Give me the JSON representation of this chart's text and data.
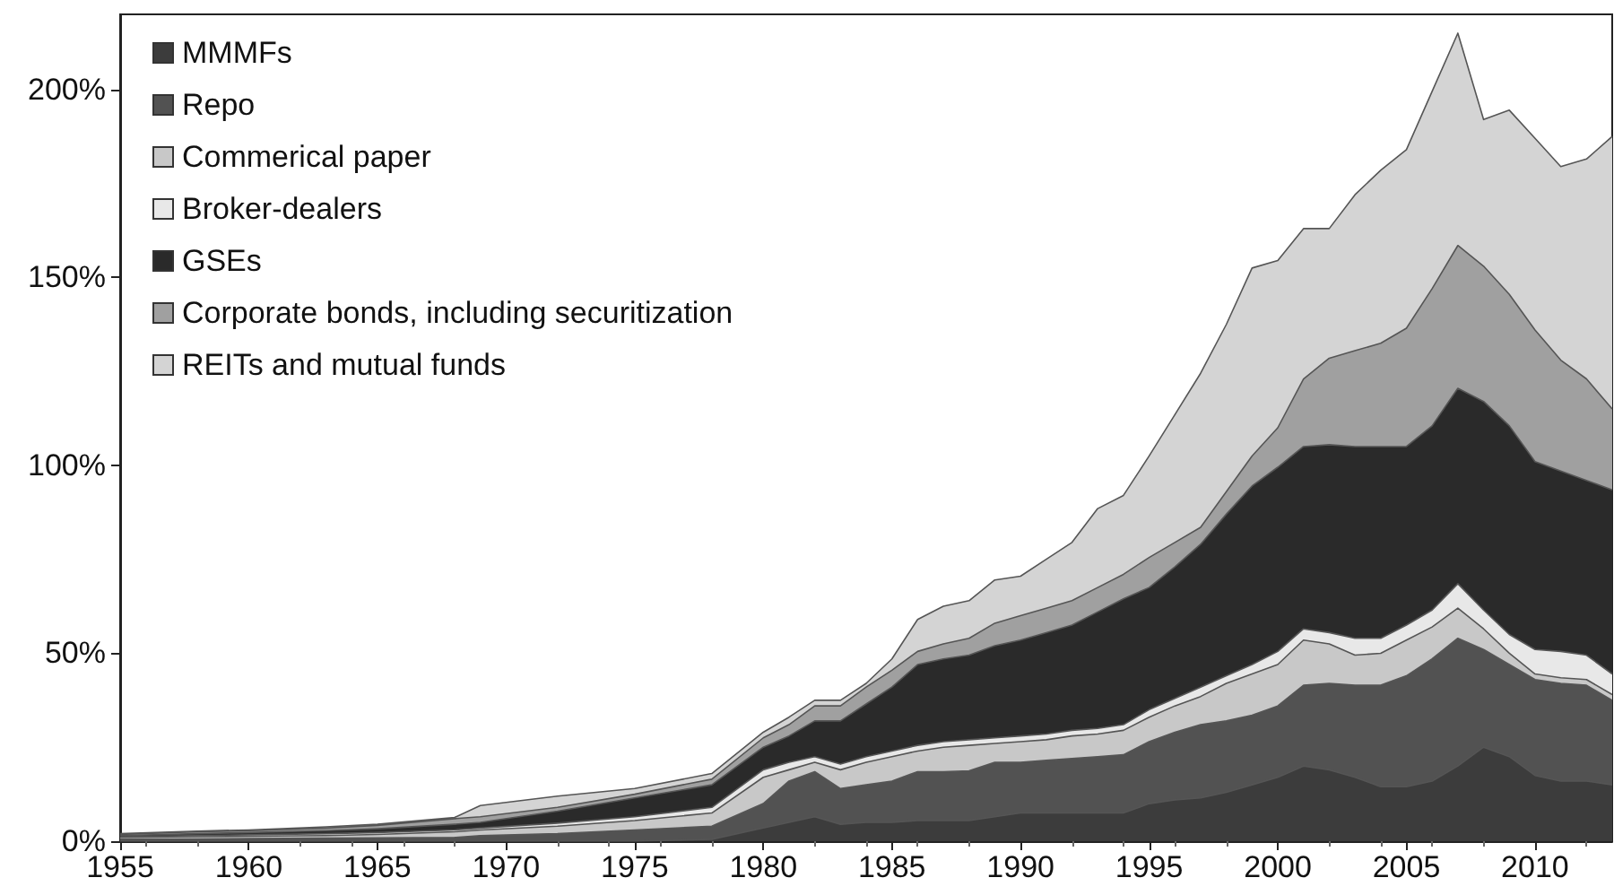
{
  "chart_data": {
    "type": "area",
    "stacked": true,
    "x": [
      1955,
      1958,
      1960,
      1963,
      1965,
      1968,
      1969,
      1972,
      1975,
      1978,
      1980,
      1981,
      1982,
      1983,
      1984,
      1985,
      1986,
      1987,
      1988,
      1989,
      1990,
      1991,
      1992,
      1993,
      1994,
      1995,
      1996,
      1997,
      1998,
      1999,
      2000,
      2001,
      2002,
      2003,
      2004,
      2005,
      2006,
      2007,
      2008,
      2009,
      2010,
      2011,
      2012,
      2013
    ],
    "series": [
      {
        "name": "MMMFs",
        "color": "#3c3c3c",
        "values": [
          0,
          0,
          0,
          0,
          0,
          0,
          0,
          0,
          0,
          0.5,
          3.5,
          5,
          6.5,
          4.5,
          5,
          5,
          5.5,
          5.5,
          5.5,
          6.5,
          7.5,
          7.5,
          7.5,
          7.5,
          7.5,
          10,
          11,
          11.5,
          13,
          15,
          17,
          20,
          19,
          17,
          14.5,
          14.5,
          16,
          20,
          25,
          22.5,
          17.5,
          16,
          16,
          15
        ]
      },
      {
        "name": "Repo",
        "color": "#525252",
        "values": [
          0.5,
          0.6,
          0.7,
          0.8,
          0.9,
          1,
          1.5,
          2,
          3,
          3.5,
          6.5,
          11,
          12,
          9.5,
          10,
          11,
          13,
          13,
          13.2,
          14.5,
          13.5,
          14,
          14.5,
          15,
          15.5,
          16.5,
          18,
          19.5,
          19,
          18.5,
          19,
          21.5,
          23,
          24.5,
          27,
          29.5,
          32.5,
          34,
          26,
          24.5,
          25.5,
          26,
          25.5,
          22.5
        ]
      },
      {
        "name": "Commerical paper",
        "color": "#c8c8c8",
        "values": [
          0.5,
          0.6,
          0.6,
          0.7,
          0.9,
          1.5,
          1.5,
          2,
          2.5,
          3.5,
          7,
          3,
          2.5,
          5,
          6,
          6.5,
          5.5,
          6.5,
          6.8,
          5,
          5.5,
          5.5,
          6,
          6,
          6.5,
          6.5,
          7,
          7.5,
          10,
          11,
          11,
          12,
          10.5,
          8,
          8.5,
          9.5,
          8.5,
          8,
          5.5,
          3,
          1.5,
          1.5,
          1.5,
          1.5
        ]
      },
      {
        "name": "Broker-dealers",
        "color": "#e8e8e8",
        "values": [
          0.2,
          0.3,
          0.4,
          0.5,
          0.5,
          0.5,
          0.5,
          0.8,
          1,
          1.5,
          2,
          2,
          1.5,
          1.5,
          1.5,
          1.5,
          1.5,
          1.5,
          1.5,
          1.5,
          1.5,
          1.5,
          1.5,
          1.5,
          1.5,
          2,
          2,
          2.5,
          2,
          2.5,
          3.5,
          3,
          3,
          4.5,
          4,
          4,
          4.5,
          6.5,
          5,
          5,
          6.5,
          7,
          6.5,
          5.5
        ]
      },
      {
        "name": "GSEs",
        "color": "#2a2a2a",
        "values": [
          0.3,
          0.5,
          0.6,
          0.8,
          1,
          1.5,
          1.5,
          3.2,
          5,
          6,
          6,
          7,
          9.5,
          11.5,
          14,
          17,
          21.5,
          22,
          22.5,
          24.5,
          25.5,
          27,
          28,
          31,
          33.5,
          32.5,
          35,
          38,
          43,
          47.5,
          49,
          48.5,
          50,
          51,
          51,
          47.5,
          49,
          52,
          55.5,
          55.5,
          50,
          48,
          46.5,
          49
        ]
      },
      {
        "name": "Corporate bonds, including securitization",
        "color": "#a0a0a0",
        "values": [
          0.3,
          0.5,
          0.5,
          0.7,
          0.9,
          1.5,
          1.5,
          1,
          1,
          1.5,
          2.5,
          3,
          4,
          4,
          4.5,
          4.5,
          3.5,
          4,
          4.5,
          6,
          6.5,
          6.5,
          6.5,
          6.5,
          6.5,
          8,
          6.5,
          4.5,
          6,
          8,
          10.5,
          18,
          23,
          25.5,
          27.5,
          31.5,
          36.5,
          38,
          36,
          35,
          35,
          29.5,
          27,
          21.5
        ]
      },
      {
        "name": "REITs and mutual funds",
        "color": "#d4d4d4",
        "values": [
          0.2,
          0.2,
          0.2,
          0.3,
          0.3,
          0.3,
          3,
          3,
          1.5,
          1.5,
          1.5,
          2,
          1.5,
          1.5,
          1,
          3,
          8.5,
          10,
          10,
          11.5,
          10.5,
          13,
          15.5,
          21,
          21,
          27,
          34,
          41,
          44.5,
          50,
          44.5,
          40,
          34.5,
          41.5,
          46,
          47.5,
          52.5,
          56.5,
          39,
          49,
          51,
          51.5,
          58.5,
          72.5
        ]
      }
    ],
    "xlim": [
      1955,
      2013
    ],
    "xticks": [
      1955,
      1960,
      1965,
      1970,
      1975,
      1980,
      1985,
      1990,
      1995,
      2000,
      2005,
      2010
    ],
    "ylim": [
      0,
      220
    ],
    "yticks": [
      {
        "value": 0,
        "label": "0%"
      },
      {
        "value": 50,
        "label": "50%"
      },
      {
        "value": 100,
        "label": "100%"
      },
      {
        "value": 150,
        "label": "150%"
      },
      {
        "value": 200,
        "label": "200%"
      }
    ],
    "grid": false,
    "legend": "top left"
  }
}
